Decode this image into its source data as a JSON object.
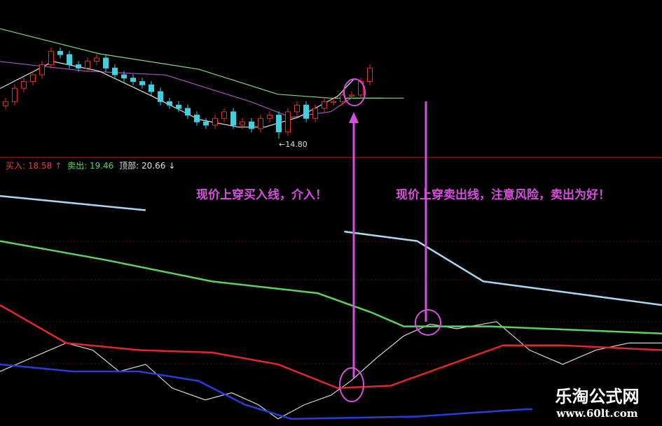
{
  "chart_data": [
    {
      "type": "candlestick",
      "panel": "price",
      "yrange": [
        14.3,
        20.9
      ],
      "closes": [
        16.72,
        17.41,
        17.76,
        18.11,
        18.63,
        19.33,
        19.16,
        18.63,
        18.46,
        18.81,
        18.98,
        18.46,
        18.11,
        17.94,
        17.76,
        17.59,
        17.24,
        16.72,
        16.54,
        16.37,
        16.02,
        15.67,
        15.5,
        15.85,
        16.19,
        15.5,
        15.67,
        15.32,
        15.85,
        16.02,
        15.15,
        16.19,
        16.54,
        15.85,
        16.37,
        16.72,
        16.72,
        17.06,
        17.06,
        17.76,
        18.46
      ],
      "first_open": 16.5,
      "low_label": "←14.80",
      "low_value": 14.8,
      "ma_series": [
        {
          "color": "#7fd87f",
          "points": [
            [
              0,
              20.5
            ],
            [
              15,
              19.2
            ],
            [
              30,
              18.4
            ],
            [
              42,
              17.1
            ],
            [
              50,
              16.9
            ],
            [
              58,
              16.9
            ]
          ]
        },
        {
          "color": "#b050c0",
          "points": [
            [
              0,
              18.8
            ],
            [
              13,
              18.3
            ],
            [
              25,
              18.1
            ],
            [
              38,
              16.7
            ],
            [
              44,
              15.9
            ],
            [
              50,
              16.2
            ],
            [
              53,
              16.9
            ]
          ]
        },
        {
          "color": "#e0e0e0",
          "points": [
            [
              0,
              17.4
            ],
            [
              8,
              18.8
            ],
            [
              15,
              18.3
            ],
            [
              23,
              17.0
            ],
            [
              30,
              15.8
            ],
            [
              36,
              15.4
            ],
            [
              40,
              15.4
            ],
            [
              45,
              15.9
            ],
            [
              51,
              17.0
            ],
            [
              53.5,
              17.9
            ]
          ]
        }
      ],
      "sell_level_line": {
        "color": "#7fd87f",
        "value": 16.9,
        "from": 52,
        "to": 61
      },
      "indicator_labels": {
        "buy": "买入: 18.58",
        "sell": "卖出: 19.46",
        "top": "顶部: 20.66"
      }
    },
    {
      "type": "line",
      "panel": "indicator",
      "yrange": [
        0,
        100
      ],
      "series": [
        {
          "color": "#d8d8d8",
          "points": [
            [
              0,
              23
            ],
            [
              10,
              35
            ],
            [
              14,
              32
            ],
            [
              18,
              23
            ],
            [
              22,
              26
            ],
            [
              26,
              16
            ],
            [
              31,
              11
            ],
            [
              35,
              14
            ],
            [
              39,
              9
            ],
            [
              42,
              3
            ],
            [
              46,
              9
            ],
            [
              50,
              13
            ],
            [
              53,
              19
            ],
            [
              57,
              29
            ],
            [
              61,
              38
            ],
            [
              65,
              43
            ],
            [
              69,
              41
            ],
            [
              75,
              44
            ],
            [
              80,
              32
            ],
            [
              85,
              26
            ],
            [
              90,
              32
            ],
            [
              95,
              35
            ],
            [
              100,
              35
            ]
          ]
        },
        {
          "color": "#a8d8f0",
          "points": [
            [
              0,
              97
            ],
            [
              22,
              91
            ]
          ]
        },
        {
          "color": "#a8d8f0",
          "points": [
            [
              52,
              82
            ],
            [
              63,
              78
            ],
            [
              73,
              61
            ],
            [
              100,
              51
            ]
          ]
        },
        {
          "color": "#5ed05e",
          "points": [
            [
              0,
              78
            ],
            [
              16,
              70
            ],
            [
              32,
              61
            ],
            [
              48,
              56
            ],
            [
              56,
              48
            ],
            [
              61,
              42
            ],
            [
              74,
              42
            ],
            [
              100,
              39
            ]
          ]
        },
        {
          "color": "#e02828",
          "points": [
            [
              0,
              51
            ],
            [
              10,
              35
            ],
            [
              21,
              32
            ],
            [
              32,
              31
            ],
            [
              42,
              26
            ],
            [
              51,
              16
            ],
            [
              59,
              17
            ],
            [
              68,
              26
            ],
            [
              76,
              34
            ],
            [
              85,
              34
            ],
            [
              100,
              32
            ]
          ]
        },
        {
          "color": "#2a3cd8",
          "points": [
            [
              0,
              26
            ],
            [
              11,
              23
            ],
            [
              21,
              23
            ],
            [
              30,
              19
            ],
            [
              37,
              9
            ],
            [
              44,
              3
            ],
            [
              63,
              4
            ],
            [
              79,
              7
            ],
            [
              100,
              9
            ]
          ]
        }
      ]
    }
  ],
  "annotations": {
    "buy_note": "现价上穿买入线，介入！",
    "sell_note": "现价上穿卖出线，注意风险，卖出为好！",
    "color": "#d84ee0"
  },
  "watermark": {
    "title": "乐淘公式网",
    "url": "www.60lt.com"
  },
  "colors": {
    "up": "#e03030",
    "down": "#40d0e0",
    "divider": "#c02020"
  }
}
